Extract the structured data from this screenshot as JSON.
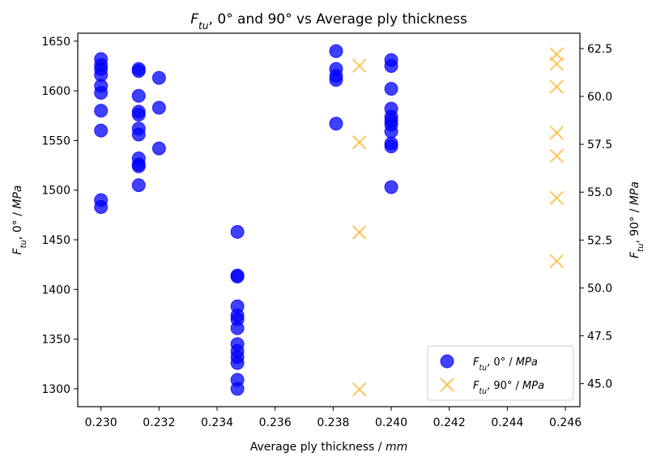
{
  "chart_data": {
    "type": "scatter",
    "title_parts": [
      "F",
      "tu",
      ", 0° and 90° vs Average ply thickness"
    ],
    "xlabel": "Average ply thickness / mm",
    "xlabel_parts": [
      "Average ply thickness / ",
      "mm"
    ],
    "ylabel_left_parts": [
      "F",
      "tu",
      ", 0° / ",
      "MPa"
    ],
    "ylabel_right_parts": [
      "F",
      "tu",
      ", 90° / ",
      "MPa"
    ],
    "xlim": [
      0.2292,
      0.2465
    ],
    "ylim_left": [
      1282,
      1658
    ],
    "ylim_right": [
      43.8,
      63.3
    ],
    "x_ticks": [
      0.23,
      0.232,
      0.234,
      0.236,
      0.238,
      0.24,
      0.242,
      0.244,
      0.246
    ],
    "x_tick_labels": [
      "0.230",
      "0.232",
      "0.234",
      "0.236",
      "0.238",
      "0.240",
      "0.242",
      "0.244",
      "0.246"
    ],
    "y_left_ticks": [
      1300,
      1350,
      1400,
      1450,
      1500,
      1550,
      1600,
      1650
    ],
    "y_left_tick_labels": [
      "1300",
      "1350",
      "1400",
      "1450",
      "1500",
      "1550",
      "1600",
      "1650"
    ],
    "y_right_ticks": [
      45.0,
      47.5,
      50.0,
      52.5,
      55.0,
      57.5,
      60.0,
      62.5
    ],
    "y_right_tick_labels": [
      "45.0",
      "47.5",
      "50.0",
      "52.5",
      "55.0",
      "57.5",
      "60.0",
      "62.5"
    ],
    "legend_position": "lower-right",
    "series": [
      {
        "name_parts": [
          "F",
          "tu",
          ", 0° / ",
          "MPa"
        ],
        "axis": "left",
        "marker": "circle",
        "color": "#0000ff",
        "points": [
          {
            "x": 0.23,
            "y": 1632
          },
          {
            "x": 0.23,
            "y": 1626
          },
          {
            "x": 0.23,
            "y": 1622
          },
          {
            "x": 0.23,
            "y": 1616
          },
          {
            "x": 0.23,
            "y": 1605
          },
          {
            "x": 0.23,
            "y": 1598
          },
          {
            "x": 0.23,
            "y": 1580
          },
          {
            "x": 0.23,
            "y": 1560
          },
          {
            "x": 0.23,
            "y": 1490
          },
          {
            "x": 0.23,
            "y": 1483
          },
          {
            "x": 0.2313,
            "y": 1622
          },
          {
            "x": 0.2313,
            "y": 1620
          },
          {
            "x": 0.2313,
            "y": 1595
          },
          {
            "x": 0.2313,
            "y": 1579
          },
          {
            "x": 0.2313,
            "y": 1576
          },
          {
            "x": 0.2313,
            "y": 1562
          },
          {
            "x": 0.2313,
            "y": 1556
          },
          {
            "x": 0.2313,
            "y": 1532
          },
          {
            "x": 0.2313,
            "y": 1526
          },
          {
            "x": 0.2313,
            "y": 1524
          },
          {
            "x": 0.2313,
            "y": 1505
          },
          {
            "x": 0.232,
            "y": 1613
          },
          {
            "x": 0.232,
            "y": 1583
          },
          {
            "x": 0.232,
            "y": 1542
          },
          {
            "x": 0.2347,
            "y": 1458
          },
          {
            "x": 0.2347,
            "y": 1414
          },
          {
            "x": 0.2347,
            "y": 1413
          },
          {
            "x": 0.2347,
            "y": 1383
          },
          {
            "x": 0.2347,
            "y": 1374
          },
          {
            "x": 0.2347,
            "y": 1370
          },
          {
            "x": 0.2347,
            "y": 1361
          },
          {
            "x": 0.2347,
            "y": 1345
          },
          {
            "x": 0.2347,
            "y": 1338
          },
          {
            "x": 0.2347,
            "y": 1332
          },
          {
            "x": 0.2347,
            "y": 1326
          },
          {
            "x": 0.2347,
            "y": 1309
          },
          {
            "x": 0.2347,
            "y": 1300
          },
          {
            "x": 0.2381,
            "y": 1640
          },
          {
            "x": 0.2381,
            "y": 1622
          },
          {
            "x": 0.2381,
            "y": 1615
          },
          {
            "x": 0.2381,
            "y": 1611
          },
          {
            "x": 0.2381,
            "y": 1567
          },
          {
            "x": 0.24,
            "y": 1631
          },
          {
            "x": 0.24,
            "y": 1625
          },
          {
            "x": 0.24,
            "y": 1602
          },
          {
            "x": 0.24,
            "y": 1582
          },
          {
            "x": 0.24,
            "y": 1574
          },
          {
            "x": 0.24,
            "y": 1570
          },
          {
            "x": 0.24,
            "y": 1566
          },
          {
            "x": 0.24,
            "y": 1559
          },
          {
            "x": 0.24,
            "y": 1547
          },
          {
            "x": 0.24,
            "y": 1544
          },
          {
            "x": 0.24,
            "y": 1503
          }
        ]
      },
      {
        "name_parts": [
          "F",
          "tu",
          ", 90° / ",
          "MPa"
        ],
        "axis": "right",
        "marker": "x",
        "color": "#ffb733",
        "points": [
          {
            "x": 0.2389,
            "y": 61.6
          },
          {
            "x": 0.2389,
            "y": 57.6
          },
          {
            "x": 0.2389,
            "y": 52.9
          },
          {
            "x": 0.2389,
            "y": 44.7
          },
          {
            "x": 0.2457,
            "y": 62.2
          },
          {
            "x": 0.2457,
            "y": 61.7
          },
          {
            "x": 0.2457,
            "y": 60.5
          },
          {
            "x": 0.2457,
            "y": 58.1
          },
          {
            "x": 0.2457,
            "y": 56.9
          },
          {
            "x": 0.2457,
            "y": 54.7
          },
          {
            "x": 0.2457,
            "y": 51.4
          }
        ]
      }
    ]
  }
}
